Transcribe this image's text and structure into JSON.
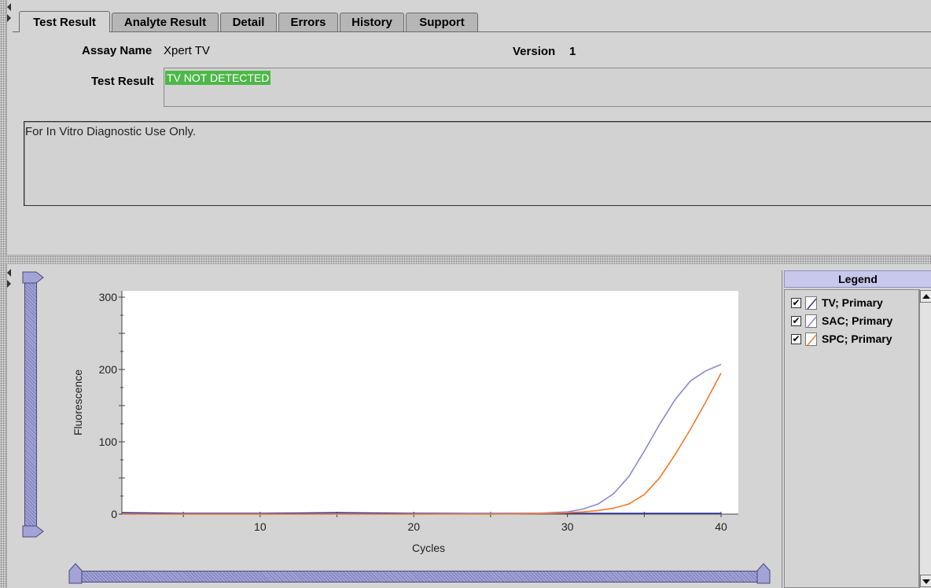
{
  "tabs": [
    {
      "label": "Test Result",
      "active": true
    },
    {
      "label": "Analyte Result",
      "active": false
    },
    {
      "label": "Detail",
      "active": false
    },
    {
      "label": "Errors",
      "active": false
    },
    {
      "label": "History",
      "active": false
    },
    {
      "label": "Support",
      "active": false
    }
  ],
  "result": {
    "assay_name_label": "Assay Name",
    "assay_name_value": "Xpert TV",
    "version_label": "Version",
    "version_value": "1",
    "test_result_label": "Test Result",
    "test_result_value": "TV NOT DETECTED",
    "test_result_color": "#4cb847",
    "notes": "For In Vitro Diagnostic Use Only."
  },
  "legend": {
    "title": "Legend",
    "items": [
      {
        "label": "TV; Primary",
        "checked": true,
        "color": "#3333a0"
      },
      {
        "label": "SAC; Primary",
        "checked": true,
        "color": "#8a88d6"
      },
      {
        "label": "SPC; Primary",
        "checked": true,
        "color": "#f07a2c"
      }
    ]
  },
  "chart_data": {
    "type": "line",
    "xlabel": "Cycles",
    "ylabel": "Fluorescence",
    "xlim": [
      1,
      40
    ],
    "ylim": [
      0,
      300
    ],
    "x_ticks": [
      10,
      20,
      30,
      40
    ],
    "y_ticks": [
      0,
      100,
      200,
      300
    ],
    "grid": false,
    "series": [
      {
        "name": "TV; Primary",
        "color": "#3333a0",
        "x": [
          1,
          5,
          10,
          15,
          20,
          25,
          30,
          35,
          40
        ],
        "y": [
          2,
          1,
          1,
          2,
          1,
          1,
          1,
          1,
          1
        ]
      },
      {
        "name": "SAC; Primary",
        "color": "#8a88d6",
        "x": [
          1,
          5,
          10,
          15,
          20,
          25,
          28,
          30,
          31,
          32,
          33,
          34,
          35,
          36,
          37,
          38,
          39,
          40
        ],
        "y": [
          0,
          0,
          0,
          0,
          0,
          1,
          1,
          3,
          7,
          14,
          28,
          52,
          87,
          124,
          158,
          184,
          198,
          207
        ]
      },
      {
        "name": "SPC; Primary",
        "color": "#f07a2c",
        "x": [
          1,
          5,
          10,
          15,
          20,
          25,
          29,
          30,
          31,
          32,
          33,
          34,
          35,
          36,
          37,
          38,
          39,
          40
        ],
        "y": [
          0,
          0,
          0,
          0,
          0,
          0,
          1,
          2,
          3,
          5,
          8,
          14,
          27,
          50,
          82,
          117,
          155,
          195
        ]
      }
    ]
  }
}
